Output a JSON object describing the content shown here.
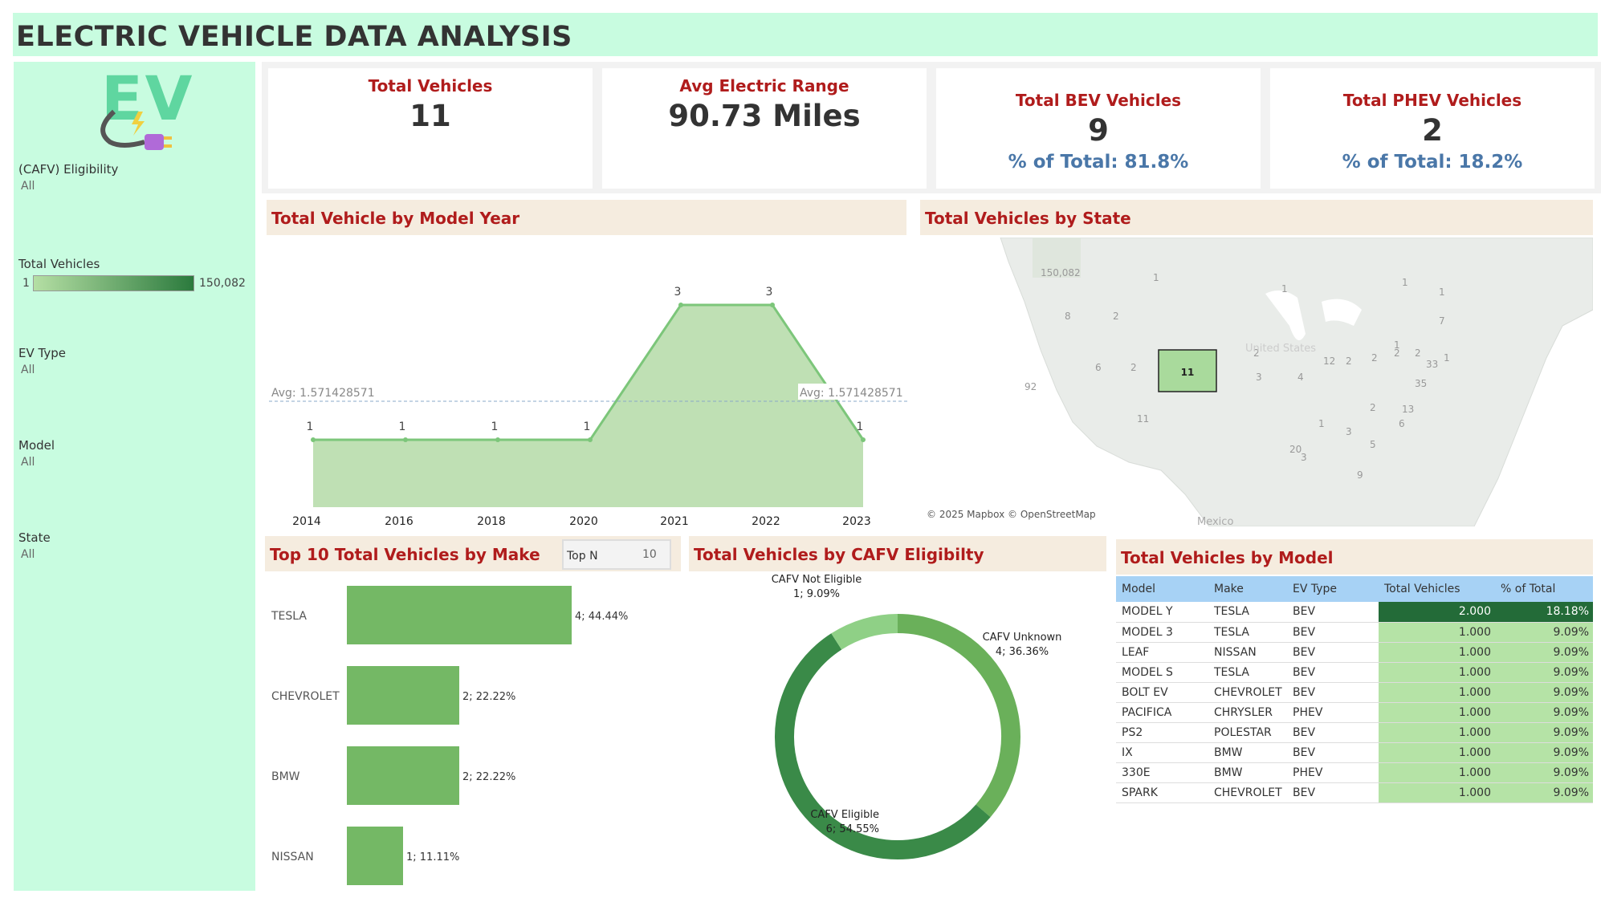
{
  "title": "ELECTRIC VEHICLE DATA ANALYSIS",
  "sidebar": {
    "filters": [
      {
        "label": "(CAFV) Eligibility",
        "value": "All"
      },
      {
        "label": "EV Type",
        "value": "All"
      },
      {
        "label": "Model",
        "value": "All"
      },
      {
        "label": "State",
        "value": "All"
      }
    ],
    "legend": {
      "label": "Total Vehicles",
      "min": "1",
      "max": "150,082",
      "color_low": "#b5dfa4",
      "color_high": "#2b7a3d"
    }
  },
  "kpis": [
    {
      "title": "Total Vehicles",
      "value": "11",
      "sub": ""
    },
    {
      "title": "Avg Electric Range",
      "value": "90.73 Miles",
      "sub": ""
    },
    {
      "title": "Total BEV Vehicles",
      "value": "9",
      "sub": "% of Total: 81.8%"
    },
    {
      "title": "Total PHEV Vehicles",
      "value": "2",
      "sub": "% of Total: 18.2%"
    }
  ],
  "sections": {
    "model_year": "Total Vehicle by Model Year",
    "state": "Total Vehicles by State",
    "make": "Top 10 Total Vehicles by Make",
    "cafv": "Total Vehicles by CAFV Eligibilty",
    "model": "Total Vehicles by Model"
  },
  "topn": {
    "label": "Top N",
    "value": "10"
  },
  "chart_data": [
    {
      "type": "area",
      "title": "Total Vehicle by Model Year",
      "x": [
        2014,
        2016,
        2018,
        2020,
        2021,
        2022,
        2023
      ],
      "values": [
        1,
        1,
        1,
        1,
        3,
        3,
        1
      ],
      "x_ticks": [
        "2014",
        "2016",
        "2018",
        "2020",
        "2021",
        "2022",
        "2023"
      ],
      "reference_line": {
        "value": 1.571428571,
        "label": "Avg: 1.571428571"
      },
      "color": "#7cc67a"
    },
    {
      "type": "bar",
      "title": "Top 10 Total Vehicles by Make",
      "categories": [
        "TESLA",
        "CHEVROLET",
        "BMW",
        "NISSAN"
      ],
      "values": [
        4,
        2,
        2,
        1
      ],
      "labels": [
        "4; 44.44%",
        "2; 22.22%",
        "2; 22.22%",
        "1; 11.11%"
      ],
      "color": "#74b865"
    },
    {
      "type": "pie",
      "title": "Total Vehicles by CAFV Eligibilty",
      "slices": [
        {
          "name": "CAFV Unknown",
          "value": 4,
          "label": "4; 36.36%",
          "color": "#6ab05a"
        },
        {
          "name": "CAFV Eligible",
          "value": 6,
          "label": "6; 54.55%",
          "color": "#3a8a48"
        },
        {
          "name": "CAFV Not Eligible",
          "value": 1,
          "label": "1; 9.09%",
          "color": "#8fd086"
        }
      ]
    }
  ],
  "map": {
    "copyright": "© 2025 Mapbox © OpenStreetMap",
    "country_label": "United States",
    "mexico_label": "Mexico",
    "highlight_value": "11",
    "state_values": [
      "150,082",
      "1",
      "1",
      "8",
      "2",
      "6",
      "2",
      "92",
      "11",
      "2",
      "3",
      "4",
      "12",
      "2",
      "2",
      "2",
      "1",
      "33",
      "35",
      "1",
      "13",
      "6",
      "2",
      "1",
      "3",
      "5",
      "20",
      "3",
      "9",
      "7",
      "2",
      "1",
      "1"
    ]
  },
  "model_table": {
    "headers": [
      "Model",
      "Make",
      "EV Type",
      "Total Vehicles",
      "% of Total"
    ],
    "rows": [
      [
        "MODEL Y",
        "TESLA",
        "BEV",
        "2.000",
        "18.18%"
      ],
      [
        "MODEL 3",
        "TESLA",
        "BEV",
        "1.000",
        "9.09%"
      ],
      [
        "LEAF",
        "NISSAN",
        "BEV",
        "1.000",
        "9.09%"
      ],
      [
        "MODEL S",
        "TESLA",
        "BEV",
        "1.000",
        "9.09%"
      ],
      [
        "BOLT EV",
        "CHEVROLET",
        "BEV",
        "1.000",
        "9.09%"
      ],
      [
        "PACIFICA",
        "CHRYSLER",
        "PHEV",
        "1.000",
        "9.09%"
      ],
      [
        "PS2",
        "POLESTAR",
        "BEV",
        "1.000",
        "9.09%"
      ],
      [
        "IX",
        "BMW",
        "BEV",
        "1.000",
        "9.09%"
      ],
      [
        "330E",
        "BMW",
        "PHEV",
        "1.000",
        "9.09%"
      ],
      [
        "SPARK",
        "CHEVROLET",
        "BEV",
        "1.000",
        "9.09%"
      ]
    ]
  },
  "colors": {
    "title_bg": "#c8fce0",
    "section_bg": "#f5ecdf",
    "kpi_title": "#b01c1c",
    "kpi_sub": "#4a77a8",
    "table_header": "#a7d2f5",
    "cell_high": "#236b38",
    "cell_low": "#b5e3a6"
  }
}
